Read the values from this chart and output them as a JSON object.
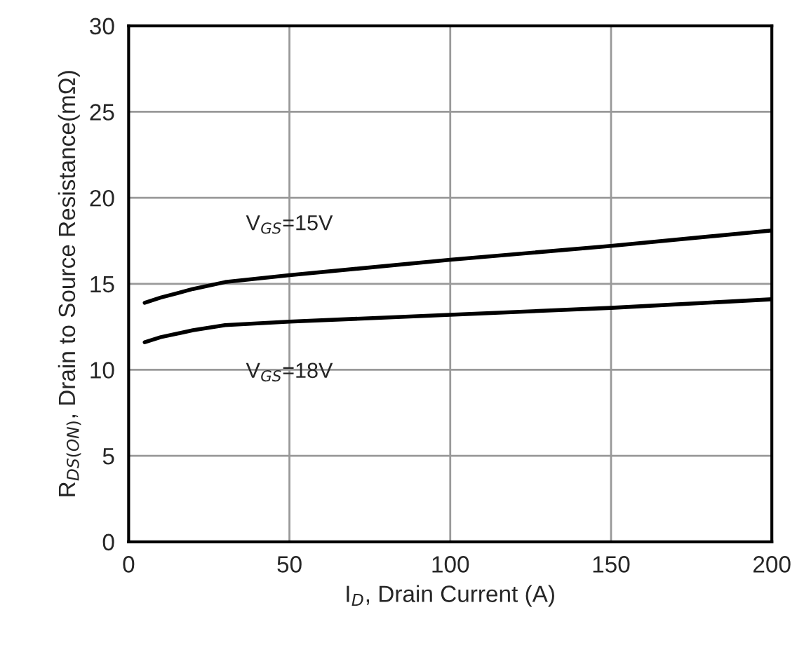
{
  "chart_data": {
    "type": "line",
    "xlabel": "I$_{D}$, Drain Current (A)",
    "ylabel": "R$_{DS(ON)}$, Drain to Source Resistance(mΩ)",
    "x": [
      5,
      10,
      20,
      30,
      50,
      100,
      150,
      200
    ],
    "series": [
      {
        "color": "#000000",
        "values": [
          13.9,
          14.2,
          14.7,
          15.1,
          15.5,
          16.4,
          17.2,
          18.1
        ]
      },
      {
        "color": "#000000",
        "values": [
          11.6,
          11.9,
          12.3,
          12.6,
          12.8,
          13.2,
          13.6,
          14.1
        ]
      }
    ],
    "annotations": [
      "V$_{GS}$=15V",
      "V$_{GS}$=18V"
    ],
    "xlim": [
      0,
      200
    ],
    "xticks": [
      0,
      50,
      100,
      150,
      200
    ],
    "ylim": [
      0,
      30
    ],
    "yticks": [
      0,
      5,
      10,
      15,
      20,
      25,
      30
    ],
    "grid": true
  }
}
